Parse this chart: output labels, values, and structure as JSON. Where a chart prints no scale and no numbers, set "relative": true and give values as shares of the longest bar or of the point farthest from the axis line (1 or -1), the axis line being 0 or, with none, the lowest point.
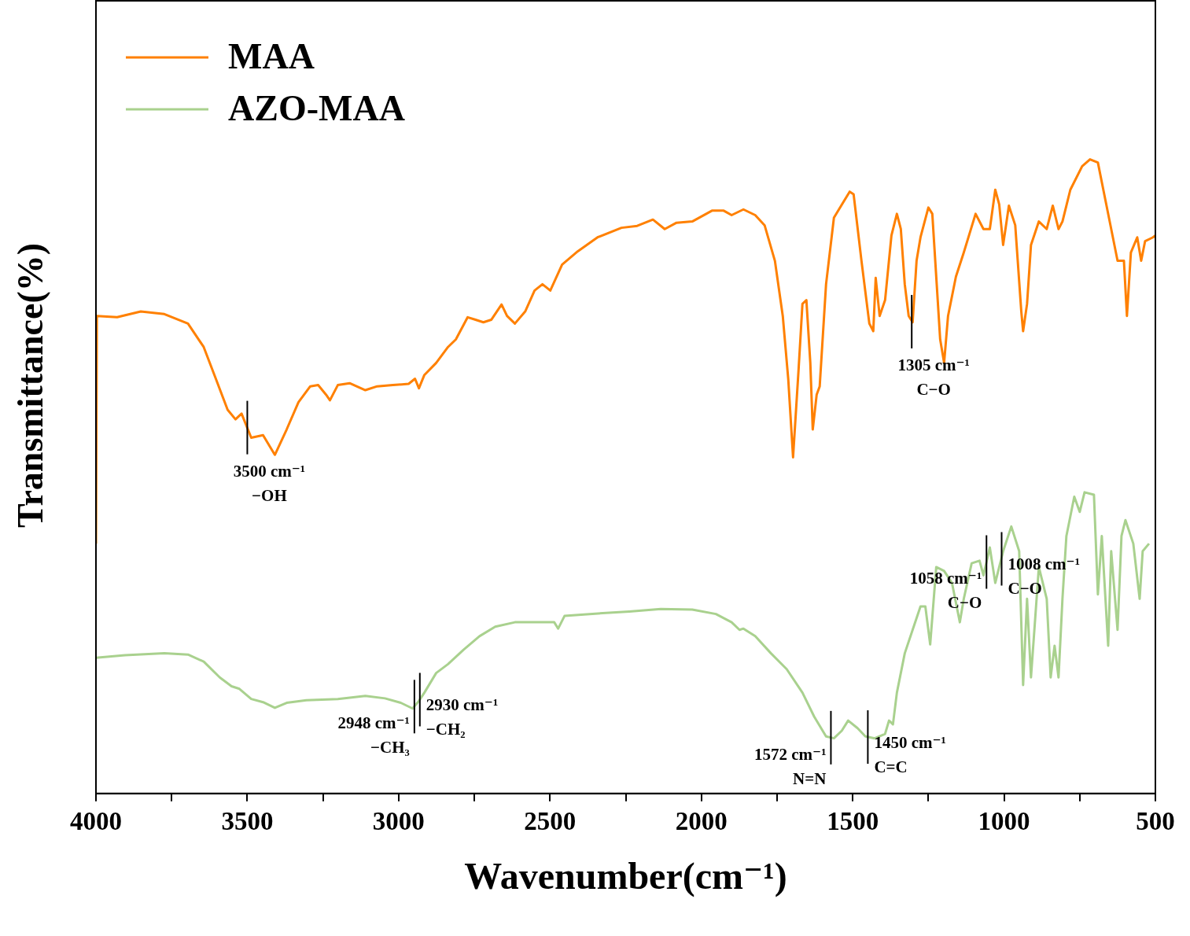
{
  "chart_data": {
    "type": "line",
    "xlabel": "Wavenumber(cm⁻¹)",
    "ylabel": "Transmittance(%)",
    "relative": true,
    "legend": "top left",
    "grid": false,
    "marker": "none",
    "line_style": "solid",
    "xlim": [
      4000,
      500
    ],
    "xticks": [
      4000,
      {
        "value": 3750,
        "label": null
      },
      3500,
      {
        "value": 3250,
        "label": null
      },
      3000,
      {
        "value": 2750,
        "label": null
      },
      2500,
      {
        "value": 2250,
        "label": null
      },
      2000,
      {
        "value": 1750,
        "label": null
      },
      1500,
      {
        "value": 1250,
        "label": null
      },
      1000,
      {
        "value": 750,
        "label": null
      },
      500
    ],
    "series": [
      {
        "name": "MAA",
        "color": "#ff8000",
        "x": [
          4000,
          3997,
          3930,
          3852,
          3774,
          3696,
          3644,
          3604,
          3565,
          3539,
          3519,
          3487,
          3448,
          3409,
          3370,
          3331,
          3292,
          3266,
          3240,
          3227,
          3201,
          3162,
          3110,
          3071,
          3019,
          2967,
          2946,
          2933,
          2915,
          2876,
          2837,
          2811,
          2772,
          2746,
          2720,
          2694,
          2660,
          2642,
          2616,
          2582,
          2551,
          2525,
          2499,
          2460,
          2408,
          2343,
          2264,
          2212,
          2160,
          2121,
          2082,
          2030,
          1965,
          1926,
          1900,
          1861,
          1822,
          1791,
          1757,
          1731,
          1713,
          1697,
          1679,
          1666,
          1653,
          1640,
          1632,
          1619,
          1609,
          1588,
          1562,
          1510,
          1497,
          1471,
          1445,
          1432,
          1424,
          1411,
          1393,
          1372,
          1354,
          1341,
          1328,
          1315,
          1302,
          1289,
          1276,
          1250,
          1237,
          1211,
          1198,
          1185,
          1159,
          1133,
          1094,
          1068,
          1047,
          1029,
          1016,
          1003,
          984,
          963,
          943,
          937,
          924,
          911,
          885,
          859,
          839,
          820,
          807,
          781,
          742,
          716,
          690,
          651,
          625,
          604,
          594,
          581,
          560,
          547,
          534,
          508,
          500
        ],
        "values": [
          0.394,
          0.753,
          0.751,
          0.76,
          0.756,
          0.741,
          0.704,
          0.654,
          0.605,
          0.59,
          0.599,
          0.561,
          0.565,
          0.534,
          0.574,
          0.617,
          0.642,
          0.644,
          0.629,
          0.62,
          0.644,
          0.647,
          0.636,
          0.642,
          0.644,
          0.646,
          0.654,
          0.639,
          0.66,
          0.679,
          0.704,
          0.716,
          0.751,
          0.747,
          0.743,
          0.747,
          0.771,
          0.753,
          0.741,
          0.76,
          0.793,
          0.803,
          0.793,
          0.834,
          0.855,
          0.877,
          0.892,
          0.895,
          0.905,
          0.89,
          0.9,
          0.902,
          0.919,
          0.919,
          0.912,
          0.921,
          0.912,
          0.896,
          0.84,
          0.753,
          0.654,
          0.53,
          0.667,
          0.772,
          0.778,
          0.679,
          0.574,
          0.629,
          0.642,
          0.803,
          0.908,
          0.949,
          0.945,
          0.84,
          0.741,
          0.729,
          0.813,
          0.753,
          0.778,
          0.88,
          0.914,
          0.89,
          0.803,
          0.753,
          0.743,
          0.84,
          0.877,
          0.924,
          0.914,
          0.716,
          0.679,
          0.753,
          0.815,
          0.853,
          0.914,
          0.89,
          0.89,
          0.952,
          0.929,
          0.865,
          0.927,
          0.896,
          0.76,
          0.729,
          0.772,
          0.865,
          0.902,
          0.89,
          0.927,
          0.89,
          0.902,
          0.952,
          0.989,
          1,
          0.995,
          0.902,
          0.84,
          0.84,
          0.753,
          0.853,
          0.877,
          0.84,
          0.871,
          0.877,
          0.88
        ]
      },
      {
        "name": "AZO-MAA",
        "color": "#a9d18e",
        "x": [
          4000,
          3904,
          3774,
          3696,
          3644,
          3591,
          3552,
          3526,
          3487,
          3448,
          3409,
          3370,
          3305,
          3201,
          3110,
          3045,
          2993,
          2954,
          2933,
          2915,
          2876,
          2837,
          2785,
          2733,
          2681,
          2616,
          2525,
          2486,
          2473,
          2452,
          2369,
          2238,
          2134,
          2030,
          1952,
          1900,
          1874,
          1861,
          1822,
          1770,
          1718,
          1666,
          1627,
          1588,
          1562,
          1536,
          1515,
          1484,
          1458,
          1427,
          1393,
          1380,
          1367,
          1354,
          1328,
          1302,
          1276,
          1260,
          1244,
          1224,
          1198,
          1172,
          1146,
          1133,
          1107,
          1081,
          1068,
          1047,
          1029,
          1003,
          976,
          950,
          937,
          924,
          911,
          885,
          859,
          846,
          833,
          820,
          807,
          794,
          768,
          750,
          734,
          703,
          690,
          677,
          656,
          646,
          625,
          612,
          599,
          573,
          552,
          542,
          521
        ],
        "values": [
          0.214,
          0.218,
          0.221,
          0.219,
          0.208,
          0.183,
          0.169,
          0.165,
          0.149,
          0.144,
          0.135,
          0.143,
          0.147,
          0.149,
          0.154,
          0.15,
          0.143,
          0.134,
          0.146,
          0.159,
          0.19,
          0.204,
          0.227,
          0.248,
          0.263,
          0.27,
          0.27,
          0.27,
          0.26,
          0.28,
          0.283,
          0.287,
          0.291,
          0.29,
          0.283,
          0.27,
          0.258,
          0.26,
          0.248,
          0.221,
          0.196,
          0.159,
          0.121,
          0.09,
          0.087,
          0.099,
          0.115,
          0.103,
          0.09,
          0.087,
          0.094,
          0.115,
          0.109,
          0.159,
          0.221,
          0.258,
          0.295,
          0.295,
          0.235,
          0.357,
          0.351,
          0.332,
          0.27,
          0.307,
          0.363,
          0.367,
          0.344,
          0.388,
          0.332,
          0.382,
          0.421,
          0.382,
          0.171,
          0.307,
          0.183,
          0.357,
          0.307,
          0.183,
          0.233,
          0.183,
          0.307,
          0.406,
          0.468,
          0.444,
          0.475,
          0.471,
          0.314,
          0.406,
          0.233,
          0.382,
          0.258,
          0.406,
          0.431,
          0.394,
          0.307,
          0.382,
          0.394
        ]
      }
    ],
    "annotations": [
      {
        "text": "3500 cm⁻¹\n−OH",
        "x": 3500,
        "y": 0.577
      },
      {
        "text": "1305 cm⁻¹\nC−O",
        "x": 1305,
        "y": 0.744
      },
      {
        "text": "2948 cm⁻¹\n−CH₃",
        "x": 2948,
        "y": 0.137
      },
      {
        "text": "2930 cm⁻¹\n−CH₂",
        "x": 2930,
        "y": 0.148
      },
      {
        "text": "1572 cm⁻¹\nN=N",
        "x": 1572,
        "y": 0.088
      },
      {
        "text": "1450 cm⁻¹\nC=C",
        "x": 1450,
        "y": 0.089
      },
      {
        "text": "1058 cm⁻¹\nC−O",
        "x": 1058,
        "y": 0.365
      },
      {
        "text": "1008 cm⁻¹\nC−O",
        "x": 1008,
        "y": 0.37
      }
    ]
  }
}
